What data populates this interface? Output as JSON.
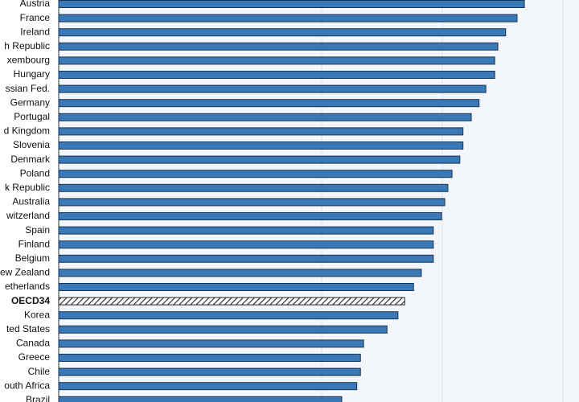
{
  "chart_data": {
    "type": "hbar",
    "categories": [
      "Austria",
      "France",
      "Ireland",
      "h Republic",
      "xembourg",
      "Hungary",
      "ssian Fed.",
      "Germany",
      "Portugal",
      "d Kingdom",
      "Slovenia",
      "Denmark",
      "Poland",
      "k Republic",
      "Australia",
      "witzerland",
      "Spain",
      "Finland",
      "Belgium",
      "ew Zealand",
      "etherlands",
      "OECD34",
      "Korea",
      "ted States",
      "Canada",
      "Greece",
      "Chile",
      "outh Africa",
      "Brazil"
    ],
    "values": [
      89.5,
      88.1,
      85.9,
      84.4,
      83.8,
      83.8,
      82.1,
      80.8,
      79.3,
      77.7,
      77.7,
      77.1,
      75.6,
      74.8,
      74.2,
      73.6,
      72.0,
      72.0,
      72.0,
      69.7,
      68.2,
      66.5,
      65.2,
      63.1,
      58.6,
      58.0,
      58.0,
      57.3,
      54.4
    ],
    "color": "#3b78b6",
    "colors": [
      "#3b78b6",
      "#3b78b6",
      "#3b78b6",
      "#3b78b6",
      "#3b78b6",
      "#3b78b6",
      "#3b78b6",
      "#3b78b6",
      "#3b78b6",
      "#3b78b6",
      "#3b78b6",
      "#3b78b6",
      "#3b78b6",
      "#3b78b6",
      "#3b78b6",
      "#3b78b6",
      "#3b78b6",
      "#3b78b6",
      "#3b78b6",
      "#3b78b6",
      "#3b78b6",
      "#222222",
      "#3b78b6",
      "#3b78b6",
      "#3b78b6",
      "#3b78b6",
      "#3b78b6",
      "#3b78b6",
      "#3b78b6"
    ],
    "xlim": [
      0,
      100
    ]
  }
}
